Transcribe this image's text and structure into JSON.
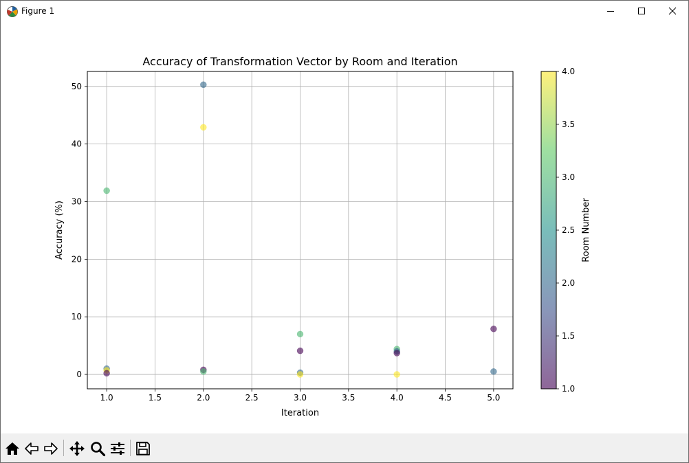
{
  "window": {
    "title": "Figure 1",
    "icon": "matplotlib-icon",
    "controls": [
      "minimize-icon",
      "maximize-icon",
      "close-icon"
    ]
  },
  "toolbar": {
    "tools": [
      {
        "name": "home-icon"
      },
      {
        "name": "back-arrow-icon"
      },
      {
        "name": "forward-arrow-icon"
      },
      {
        "name": "pan-move-icon"
      },
      {
        "name": "zoom-magnifier-icon"
      },
      {
        "name": "subplots-sliders-icon"
      },
      {
        "name": "save-floppy-icon"
      }
    ]
  },
  "chart_data": {
    "type": "scatter",
    "title": "Accuracy of Transformation Vector by Room and Iteration",
    "xlabel": "Iteration",
    "ylabel": "Accuracy (%)",
    "xlim": [
      0.8,
      5.2
    ],
    "ylim": [
      -2.5,
      52.6
    ],
    "xticks": [
      "1.0",
      "1.5",
      "2.0",
      "2.5",
      "3.0",
      "3.5",
      "4.0",
      "4.5",
      "5.0"
    ],
    "xtick_values": [
      1.0,
      1.5,
      2.0,
      2.5,
      3.0,
      3.5,
      4.0,
      4.5,
      5.0
    ],
    "yticks": [
      "0",
      "10",
      "20",
      "30",
      "40",
      "50"
    ],
    "ytick_values": [
      0,
      10,
      20,
      30,
      40,
      50
    ],
    "grid": true,
    "colormap": "viridis",
    "alpha": 0.6,
    "colorbar": {
      "label": "Room Number",
      "range": [
        1.0,
        4.0
      ],
      "ticks": [
        "1.0",
        "1.5",
        "2.0",
        "2.5",
        "3.0",
        "3.5",
        "4.0"
      ],
      "tick_values": [
        1.0,
        1.5,
        2.0,
        2.5,
        3.0,
        3.5,
        4.0
      ]
    },
    "points": [
      {
        "x": 1.0,
        "y": 31.9,
        "room": 3
      },
      {
        "x": 1.0,
        "y": 1.0,
        "room": 2
      },
      {
        "x": 1.0,
        "y": 0.7,
        "room": 4
      },
      {
        "x": 1.0,
        "y": 0.2,
        "room": 1
      },
      {
        "x": 2.0,
        "y": 50.3,
        "room": 2
      },
      {
        "x": 2.0,
        "y": 42.9,
        "room": 4
      },
      {
        "x": 2.0,
        "y": 0.8,
        "room": 1
      },
      {
        "x": 2.0,
        "y": 0.5,
        "room": 3
      },
      {
        "x": 3.0,
        "y": 7.0,
        "room": 3
      },
      {
        "x": 3.0,
        "y": 4.1,
        "room": 1
      },
      {
        "x": 3.0,
        "y": 0.3,
        "room": 2
      },
      {
        "x": 3.0,
        "y": 0.0,
        "room": 4
      },
      {
        "x": 4.0,
        "y": 4.4,
        "room": 3
      },
      {
        "x": 4.0,
        "y": 4.0,
        "room": 2
      },
      {
        "x": 4.0,
        "y": 3.7,
        "room": 1
      },
      {
        "x": 4.0,
        "y": 0.0,
        "room": 4
      },
      {
        "x": 5.0,
        "y": 7.9,
        "room": 1
      },
      {
        "x": 5.0,
        "y": 0.5,
        "room": 2
      }
    ]
  }
}
